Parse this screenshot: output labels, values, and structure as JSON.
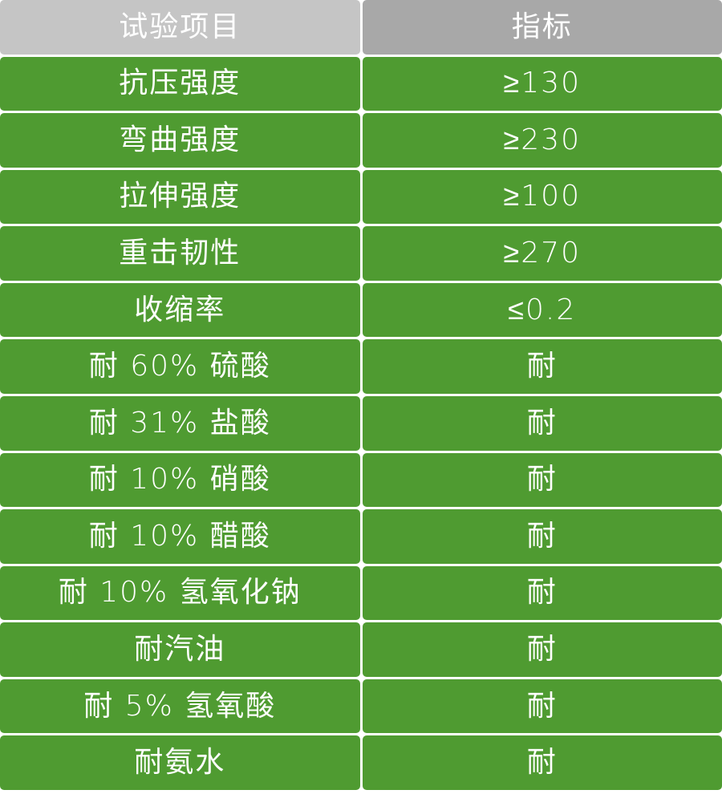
{
  "table": {
    "header": {
      "item_label": "试验项目",
      "indicator_label": "指标"
    },
    "rows": [
      {
        "item": "抗压强度",
        "value": "≥130"
      },
      {
        "item": "弯曲强度",
        "value": "≥230"
      },
      {
        "item": "拉伸强度",
        "value": "≥100"
      },
      {
        "item": "重击韧性",
        "value": "≥270"
      },
      {
        "item": "收缩率",
        "value": "≤0.2"
      },
      {
        "item": "耐 60% 硫酸",
        "value": "耐"
      },
      {
        "item": "耐 31% 盐酸",
        "value": "耐"
      },
      {
        "item": "耐 10% 硝酸",
        "value": "耐"
      },
      {
        "item": "耐 10% 醋酸",
        "value": "耐"
      },
      {
        "item": "耐 10% 氢氧化钠",
        "value": "耐"
      },
      {
        "item": "耐汽油",
        "value": "耐"
      },
      {
        "item": "耐 5% 氢氧酸",
        "value": "耐"
      },
      {
        "item": "耐氨水",
        "value": "耐"
      }
    ],
    "colors": {
      "row_green": "#4f9b31",
      "header_item_gray": "#c5c5c5",
      "header_indicator_gray": "#a8a8a8",
      "text": "#ffffff",
      "gap_background": "#ffffff"
    }
  },
  "chart_data": {
    "type": "table",
    "title": "",
    "columns": [
      "试验项目",
      "指标"
    ],
    "rows": [
      [
        "抗压强度",
        "≥130"
      ],
      [
        "弯曲强度",
        "≥230"
      ],
      [
        "拉伸强度",
        "≥100"
      ],
      [
        "重击韧性",
        "≥270"
      ],
      [
        "收缩率",
        "≤0.2"
      ],
      [
        "耐 60% 硫酸",
        "耐"
      ],
      [
        "耐 31% 盐酸",
        "耐"
      ],
      [
        "耐 10% 硝酸",
        "耐"
      ],
      [
        "耐 10% 醋酸",
        "耐"
      ],
      [
        "耐 10% 氢氧化钠",
        "耐"
      ],
      [
        "耐汽油",
        "耐"
      ],
      [
        "耐 5% 氢氧酸",
        "耐"
      ],
      [
        "耐氨水",
        "耐"
      ]
    ],
    "layout_hints": {
      "header_row": true,
      "columns_split": "50/50",
      "cell_style": "rounded green blocks on white gaps"
    }
  }
}
